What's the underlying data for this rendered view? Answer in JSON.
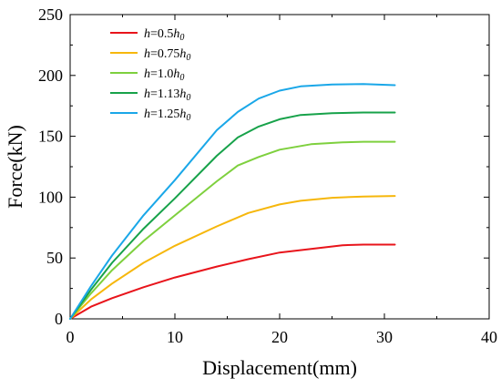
{
  "chart_data": {
    "type": "line",
    "xlabel": "Displacement(mm)",
    "ylabel": "Force(kN)",
    "xlim": [
      0,
      40
    ],
    "ylim": [
      0,
      250
    ],
    "xticks": [
      0,
      10,
      20,
      30,
      40
    ],
    "yticks": [
      0,
      50,
      100,
      150,
      200,
      250
    ],
    "grid": false,
    "legend_position": "top-left",
    "series": [
      {
        "name": "h=0.5h0",
        "label_var": "h",
        "label_coef": "=0.5",
        "label_ref": "h",
        "label_ref_sub": "0",
        "color": "#e8141b",
        "x": [
          0,
          2,
          4,
          7,
          10,
          14,
          17,
          20,
          23,
          26,
          28,
          31
        ],
        "y": [
          0,
          10,
          17,
          26,
          34,
          43,
          49,
          54.5,
          57.5,
          60.5,
          61,
          61
        ]
      },
      {
        "name": "h=0.75h0",
        "label_var": "h",
        "label_coef": "=0.75",
        "label_ref": "h",
        "label_ref_sub": "0",
        "color": "#f6b70c",
        "x": [
          0,
          2,
          4,
          7,
          10,
          14,
          17,
          20,
          22,
          25,
          28,
          31
        ],
        "y": [
          0,
          16,
          29,
          46,
          60,
          76,
          87,
          94,
          97,
          99.5,
          100.5,
          101
        ]
      },
      {
        "name": "h=1.0h0",
        "label_var": "h",
        "label_coef": "=1.0",
        "label_ref": "h",
        "label_ref_sub": "0",
        "color": "#7ed03e",
        "x": [
          0,
          2,
          4,
          7,
          10,
          14,
          16,
          18,
          20,
          23,
          26,
          28,
          31
        ],
        "y": [
          0,
          21,
          40,
          64,
          85,
          113,
          126,
          133,
          139,
          143.5,
          145,
          145.5,
          145.5
        ]
      },
      {
        "name": "h=1.13h0",
        "label_var": "h",
        "label_coef": "=1.13",
        "label_ref": "h",
        "label_ref_sub": "0",
        "color": "#17a24a",
        "x": [
          0,
          2,
          4,
          7,
          10,
          14,
          16,
          18,
          20,
          22,
          25,
          28,
          31
        ],
        "y": [
          0,
          24,
          46,
          74,
          99,
          134,
          149,
          158,
          164,
          167.5,
          169,
          169.5,
          169.5
        ]
      },
      {
        "name": "h=1.25h0",
        "label_var": "h",
        "label_coef": "=1.25",
        "label_ref": "h",
        "label_ref_sub": "0",
        "color": "#1aa7e8",
        "x": [
          0,
          2,
          4,
          7,
          10,
          14,
          16,
          18,
          20,
          22,
          25,
          28,
          31
        ],
        "y": [
          0,
          27,
          52,
          85,
          114,
          155,
          170,
          181,
          187.5,
          191,
          192.5,
          193,
          192
        ]
      }
    ]
  }
}
